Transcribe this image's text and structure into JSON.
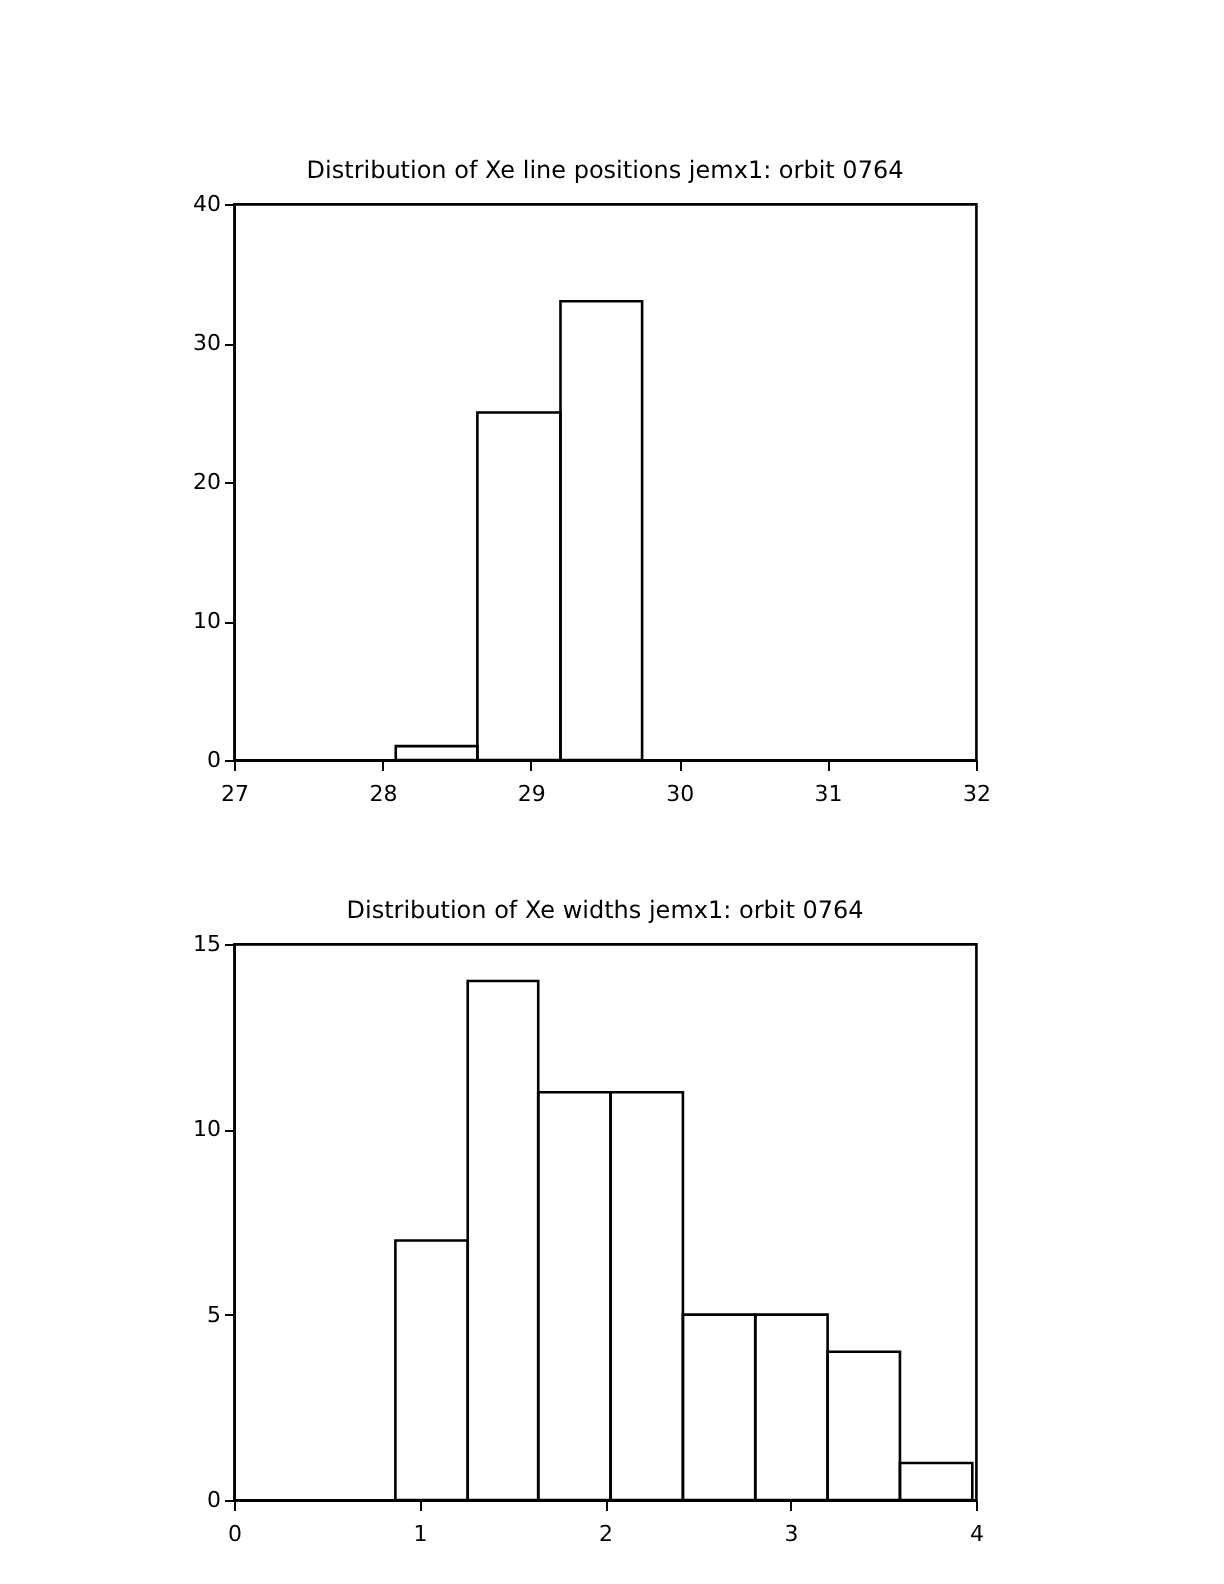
{
  "chart_data": [
    {
      "type": "histogram",
      "title": "Distribution of Xe line positions jemx1: orbit 0764",
      "bins": [
        28.09,
        28.64,
        29.2,
        29.75
      ],
      "values": [
        1,
        25,
        33
      ],
      "color": "#000000",
      "xlim": [
        27,
        32
      ],
      "xticks": [
        27,
        28,
        29,
        30,
        31,
        32
      ],
      "ylim": [
        0,
        40
      ],
      "yticks": [
        0,
        10,
        20,
        30,
        40
      ]
    },
    {
      "type": "histogram",
      "title": "Distribution of Xe widths jemx1: orbit 0764",
      "bins": [
        0.87,
        1.26,
        1.64,
        2.03,
        2.42,
        2.81,
        3.2,
        3.59,
        3.98
      ],
      "values": [
        7,
        14,
        11,
        11,
        5,
        5,
        4,
        1
      ],
      "color": "#000000",
      "xlim": [
        0,
        4
      ],
      "xticks": [
        0,
        1,
        2,
        3,
        4
      ],
      "ylim": [
        0,
        15
      ],
      "yticks": [
        0,
        5,
        10,
        15
      ]
    }
  ]
}
